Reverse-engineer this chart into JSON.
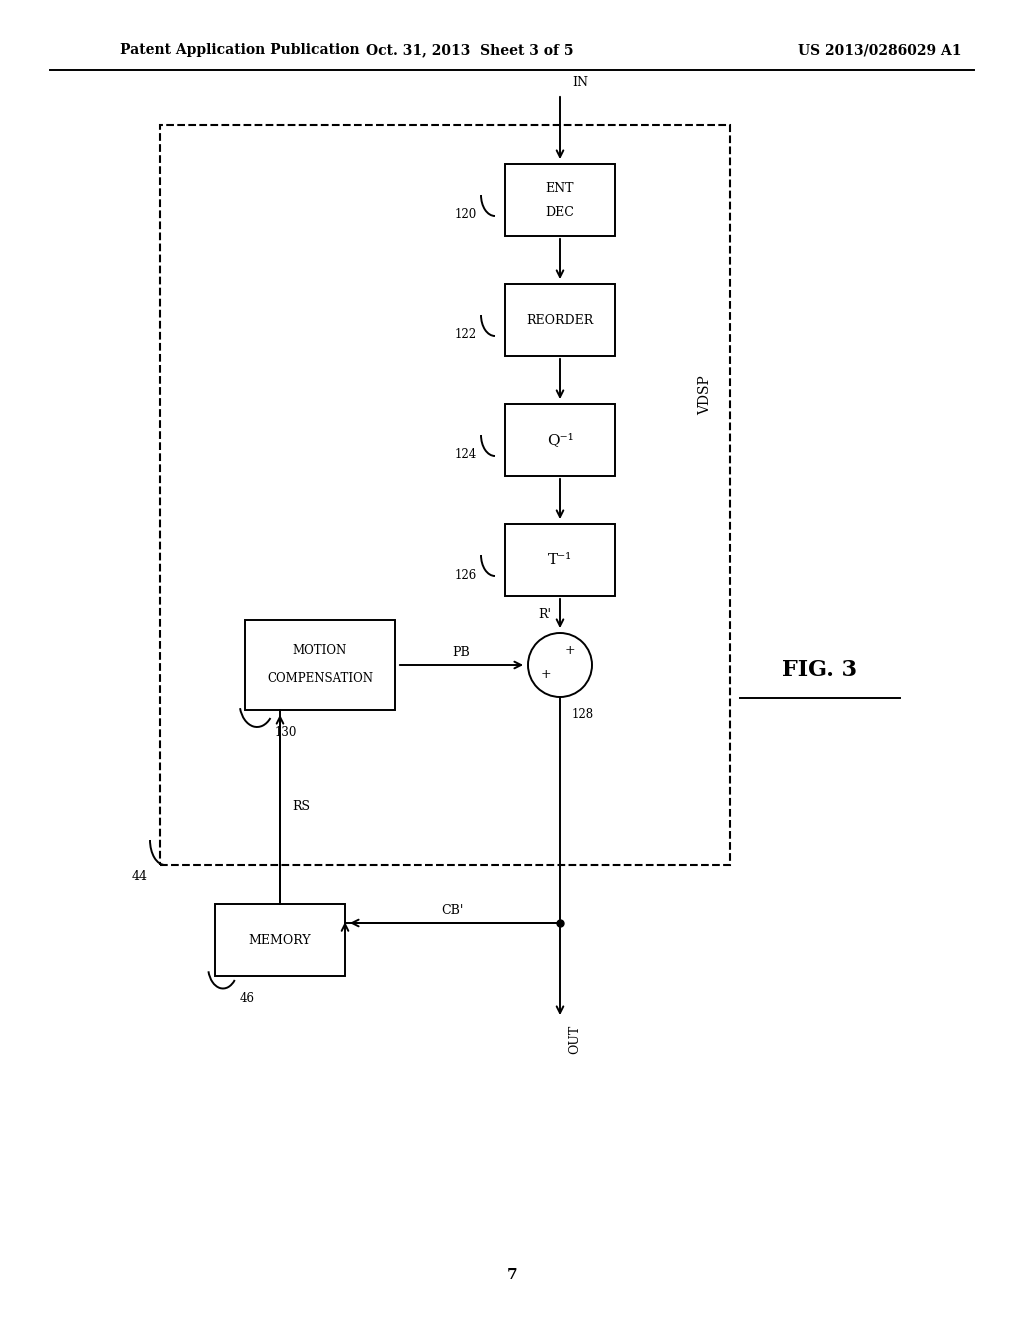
{
  "header_left": "Patent Application Publication",
  "header_mid": "Oct. 31, 2013  Sheet 3 of 5",
  "header_right": "US 2013/0286029 A1",
  "page_number": "7",
  "fig_label": "FIG. 3",
  "bg_color": "#ffffff",
  "line_color": "#000000"
}
